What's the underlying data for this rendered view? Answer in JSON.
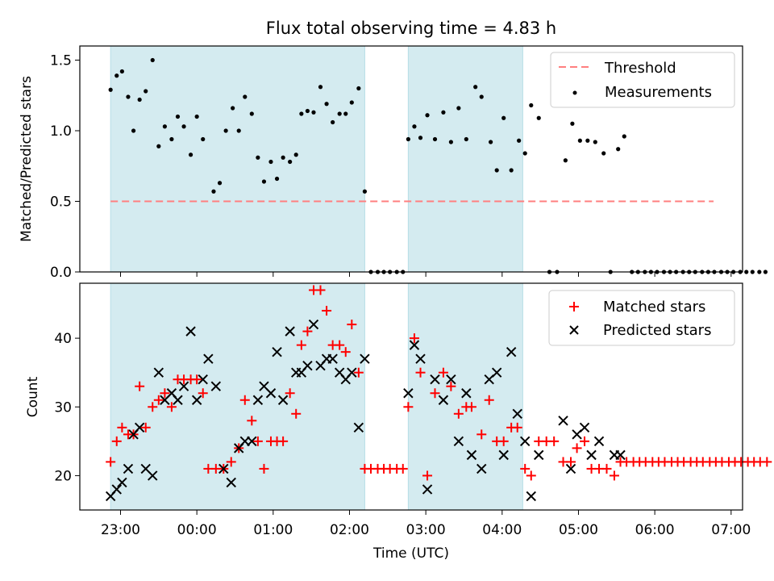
{
  "chart_data": [
    {
      "type": "scatter",
      "title": "Flux total observing time = 4.83 h",
      "xlabel": "",
      "ylabel": "Matched/Predicted stars",
      "ylim": [
        0,
        1.6
      ],
      "yticks": [
        "0.0",
        "0.5",
        "1.0",
        "1.5"
      ],
      "shaded_intervals_hours": [
        [
          22.87,
          2.2
        ],
        [
          2.77,
          4.27
        ]
      ],
      "shade_color": "#d4ebf0",
      "threshold": {
        "name": "Threshold",
        "value": 0.5,
        "x_range_hours": [
          22.87,
          6.77
        ],
        "color": "#ff7f7f"
      },
      "series": [
        {
          "name": "Measurements",
          "color": "#000000",
          "points": [
            [
              22.87,
              1.29
            ],
            [
              22.95,
              1.39
            ],
            [
              23.02,
              1.42
            ],
            [
              23.1,
              1.24
            ],
            [
              23.17,
              1.0
            ],
            [
              23.25,
              1.22
            ],
            [
              23.33,
              1.28
            ],
            [
              23.42,
              1.5
            ],
            [
              23.5,
              0.89
            ],
            [
              23.58,
              1.03
            ],
            [
              23.67,
              0.94
            ],
            [
              23.75,
              1.1
            ],
            [
              23.83,
              1.03
            ],
            [
              23.92,
              0.83
            ],
            [
              24.0,
              1.1
            ],
            [
              24.08,
              0.94
            ],
            [
              24.22,
              0.57
            ],
            [
              24.3,
              0.63
            ],
            [
              24.38,
              1.0
            ],
            [
              24.47,
              1.16
            ],
            [
              24.55,
              1.0
            ],
            [
              24.63,
              1.24
            ],
            [
              24.72,
              1.12
            ],
            [
              24.8,
              0.81
            ],
            [
              24.88,
              0.64
            ],
            [
              24.97,
              0.78
            ],
            [
              25.05,
              0.66
            ],
            [
              25.13,
              0.81
            ],
            [
              25.22,
              0.78
            ],
            [
              25.3,
              0.83
            ],
            [
              25.37,
              1.12
            ],
            [
              25.45,
              1.14
            ],
            [
              25.53,
              1.13
            ],
            [
              25.62,
              1.31
            ],
            [
              25.7,
              1.19
            ],
            [
              25.78,
              1.06
            ],
            [
              25.87,
              1.12
            ],
            [
              25.95,
              1.12
            ],
            [
              26.03,
              1.2
            ],
            [
              26.12,
              1.3
            ],
            [
              26.2,
              0.57
            ],
            [
              26.28,
              0.0
            ],
            [
              26.37,
              0.0
            ],
            [
              26.45,
              0.0
            ],
            [
              26.53,
              0.0
            ],
            [
              26.62,
              0.0
            ],
            [
              26.7,
              0.0
            ],
            [
              26.77,
              0.94
            ],
            [
              26.85,
              1.03
            ],
            [
              26.93,
              0.95
            ],
            [
              27.02,
              1.11
            ],
            [
              27.12,
              0.94
            ],
            [
              27.23,
              1.13
            ],
            [
              27.33,
              0.92
            ],
            [
              27.43,
              1.16
            ],
            [
              27.53,
              0.94
            ],
            [
              27.65,
              1.31
            ],
            [
              27.73,
              1.24
            ],
            [
              27.85,
              0.92
            ],
            [
              27.93,
              0.72
            ],
            [
              28.02,
              1.09
            ],
            [
              28.12,
              0.72
            ],
            [
              28.22,
              0.93
            ],
            [
              28.3,
              0.84
            ],
            [
              28.38,
              1.18
            ],
            [
              28.48,
              1.09
            ],
            [
              28.62,
              0.0
            ],
            [
              28.72,
              0.0
            ],
            [
              28.83,
              0.79
            ],
            [
              28.92,
              1.05
            ],
            [
              29.02,
              0.93
            ],
            [
              29.12,
              0.93
            ],
            [
              29.22,
              0.92
            ],
            [
              29.33,
              0.84
            ],
            [
              29.42,
              0.0
            ],
            [
              29.52,
              0.87
            ],
            [
              29.6,
              0.96
            ],
            [
              29.7,
              0.0
            ],
            [
              29.78,
              0.0
            ],
            [
              29.87,
              0.0
            ],
            [
              29.95,
              0.0
            ],
            [
              30.03,
              0.0
            ],
            [
              30.12,
              0.0
            ],
            [
              30.2,
              0.0
            ],
            [
              30.28,
              0.0
            ],
            [
              30.37,
              0.0
            ],
            [
              30.45,
              0.0
            ],
            [
              30.53,
              0.0
            ],
            [
              30.62,
              0.0
            ],
            [
              30.7,
              0.0
            ],
            [
              30.78,
              0.0
            ],
            [
              30.87,
              0.0
            ],
            [
              30.95,
              0.0
            ],
            [
              31.03,
              0.0
            ],
            [
              31.12,
              0.0
            ],
            [
              31.2,
              0.0
            ],
            [
              31.28,
              0.0
            ],
            [
              31.37,
              0.0
            ],
            [
              31.45,
              0.0
            ]
          ]
        }
      ]
    },
    {
      "type": "scatter",
      "xlabel": "Time (UTC)",
      "ylabel": "Count",
      "ylim": [
        15,
        48
      ],
      "yticks": [
        "20",
        "30",
        "40"
      ],
      "xticks": [
        "23:00",
        "00:00",
        "01:00",
        "02:00",
        "03:00",
        "04:00",
        "05:00",
        "06:00",
        "07:00"
      ],
      "series": [
        {
          "name": "Matched stars",
          "marker": "+",
          "color": "#ff0000",
          "points": [
            [
              22.87,
              22
            ],
            [
              22.95,
              25
            ],
            [
              23.02,
              27
            ],
            [
              23.1,
              26
            ],
            [
              23.17,
              26
            ],
            [
              23.25,
              33
            ],
            [
              23.33,
              27
            ],
            [
              23.42,
              30
            ],
            [
              23.5,
              31
            ],
            [
              23.58,
              32
            ],
            [
              23.67,
              30
            ],
            [
              23.75,
              34
            ],
            [
              23.83,
              34
            ],
            [
              23.92,
              34
            ],
            [
              24.0,
              34
            ],
            [
              24.08,
              32
            ],
            [
              24.15,
              21
            ],
            [
              24.25,
              21
            ],
            [
              24.35,
              21
            ],
            [
              24.45,
              22
            ],
            [
              24.55,
              24
            ],
            [
              24.63,
              31
            ],
            [
              24.72,
              28
            ],
            [
              24.8,
              25
            ],
            [
              24.88,
              21
            ],
            [
              24.97,
              25
            ],
            [
              25.05,
              25
            ],
            [
              25.13,
              25
            ],
            [
              25.22,
              32
            ],
            [
              25.3,
              29
            ],
            [
              25.37,
              39
            ],
            [
              25.45,
              41
            ],
            [
              25.53,
              47
            ],
            [
              25.62,
              47
            ],
            [
              25.7,
              44
            ],
            [
              25.78,
              39
            ],
            [
              25.87,
              39
            ],
            [
              25.95,
              38
            ],
            [
              26.03,
              42
            ],
            [
              26.12,
              35
            ],
            [
              26.2,
              21
            ],
            [
              26.28,
              21
            ],
            [
              26.37,
              21
            ],
            [
              26.45,
              21
            ],
            [
              26.53,
              21
            ],
            [
              26.62,
              21
            ],
            [
              26.7,
              21
            ],
            [
              26.77,
              30
            ],
            [
              26.85,
              40
            ],
            [
              26.93,
              35
            ],
            [
              27.02,
              20
            ],
            [
              27.12,
              32
            ],
            [
              27.23,
              35
            ],
            [
              27.33,
              33
            ],
            [
              27.43,
              29
            ],
            [
              27.53,
              30
            ],
            [
              27.6,
              30
            ],
            [
              27.73,
              26
            ],
            [
              27.83,
              31
            ],
            [
              27.93,
              25
            ],
            [
              28.02,
              25
            ],
            [
              28.12,
              27
            ],
            [
              28.2,
              27
            ],
            [
              28.3,
              21
            ],
            [
              28.38,
              20
            ],
            [
              28.48,
              25
            ],
            [
              28.58,
              25
            ],
            [
              28.68,
              25
            ],
            [
              28.8,
              22
            ],
            [
              28.9,
              22
            ],
            [
              28.98,
              24
            ],
            [
              29.08,
              25
            ],
            [
              29.17,
              21
            ],
            [
              29.27,
              21
            ],
            [
              29.37,
              21
            ],
            [
              29.47,
              20
            ],
            [
              29.55,
              22
            ],
            [
              29.63,
              22
            ],
            [
              29.72,
              22
            ],
            [
              29.8,
              22
            ],
            [
              29.88,
              22
            ],
            [
              29.97,
              22
            ],
            [
              30.05,
              22
            ],
            [
              30.13,
              22
            ],
            [
              30.22,
              22
            ],
            [
              30.3,
              22
            ],
            [
              30.38,
              22
            ],
            [
              30.47,
              22
            ],
            [
              30.55,
              22
            ],
            [
              30.63,
              22
            ],
            [
              30.72,
              22
            ],
            [
              30.8,
              22
            ],
            [
              30.88,
              22
            ],
            [
              30.97,
              22
            ],
            [
              31.05,
              22
            ],
            [
              31.13,
              22
            ],
            [
              31.22,
              22
            ],
            [
              31.3,
              22
            ],
            [
              31.38,
              22
            ],
            [
              31.47,
              22
            ]
          ]
        },
        {
          "name": "Predicted stars",
          "marker": "x",
          "color": "#000000",
          "points": [
            [
              22.87,
              17
            ],
            [
              22.95,
              18
            ],
            [
              23.02,
              19
            ],
            [
              23.1,
              21
            ],
            [
              23.17,
              26
            ],
            [
              23.25,
              27
            ],
            [
              23.33,
              21
            ],
            [
              23.42,
              20
            ],
            [
              23.5,
              35
            ],
            [
              23.58,
              31
            ],
            [
              23.67,
              32
            ],
            [
              23.75,
              31
            ],
            [
              23.83,
              33
            ],
            [
              23.92,
              41
            ],
            [
              24.0,
              31
            ],
            [
              24.08,
              34
            ],
            [
              24.15,
              37
            ],
            [
              24.25,
              33
            ],
            [
              24.35,
              21
            ],
            [
              24.45,
              19
            ],
            [
              24.55,
              24
            ],
            [
              24.63,
              25
            ],
            [
              24.72,
              25
            ],
            [
              24.8,
              31
            ],
            [
              24.88,
              33
            ],
            [
              24.97,
              32
            ],
            [
              25.05,
              38
            ],
            [
              25.13,
              31
            ],
            [
              25.22,
              41
            ],
            [
              25.3,
              35
            ],
            [
              25.37,
              35
            ],
            [
              25.45,
              36
            ],
            [
              25.53,
              42
            ],
            [
              25.62,
              36
            ],
            [
              25.7,
              37
            ],
            [
              25.78,
              37
            ],
            [
              25.87,
              35
            ],
            [
              25.95,
              34
            ],
            [
              26.03,
              35
            ],
            [
              26.12,
              27
            ],
            [
              26.2,
              37
            ],
            [
              26.77,
              32
            ],
            [
              26.85,
              39
            ],
            [
              26.93,
              37
            ],
            [
              27.02,
              18
            ],
            [
              27.12,
              34
            ],
            [
              27.23,
              31
            ],
            [
              27.33,
              34
            ],
            [
              27.43,
              25
            ],
            [
              27.53,
              32
            ],
            [
              27.6,
              23
            ],
            [
              27.73,
              21
            ],
            [
              27.83,
              34
            ],
            [
              27.93,
              35
            ],
            [
              28.02,
              23
            ],
            [
              28.12,
              38
            ],
            [
              28.2,
              29
            ],
            [
              28.3,
              25
            ],
            [
              28.38,
              17
            ],
            [
              28.48,
              23
            ],
            [
              28.8,
              28
            ],
            [
              28.9,
              21
            ],
            [
              28.98,
              26
            ],
            [
              29.08,
              27
            ],
            [
              29.17,
              23
            ],
            [
              29.27,
              25
            ],
            [
              29.47,
              23
            ],
            [
              29.55,
              23
            ]
          ]
        }
      ],
      "legend_position": "upper right"
    }
  ]
}
